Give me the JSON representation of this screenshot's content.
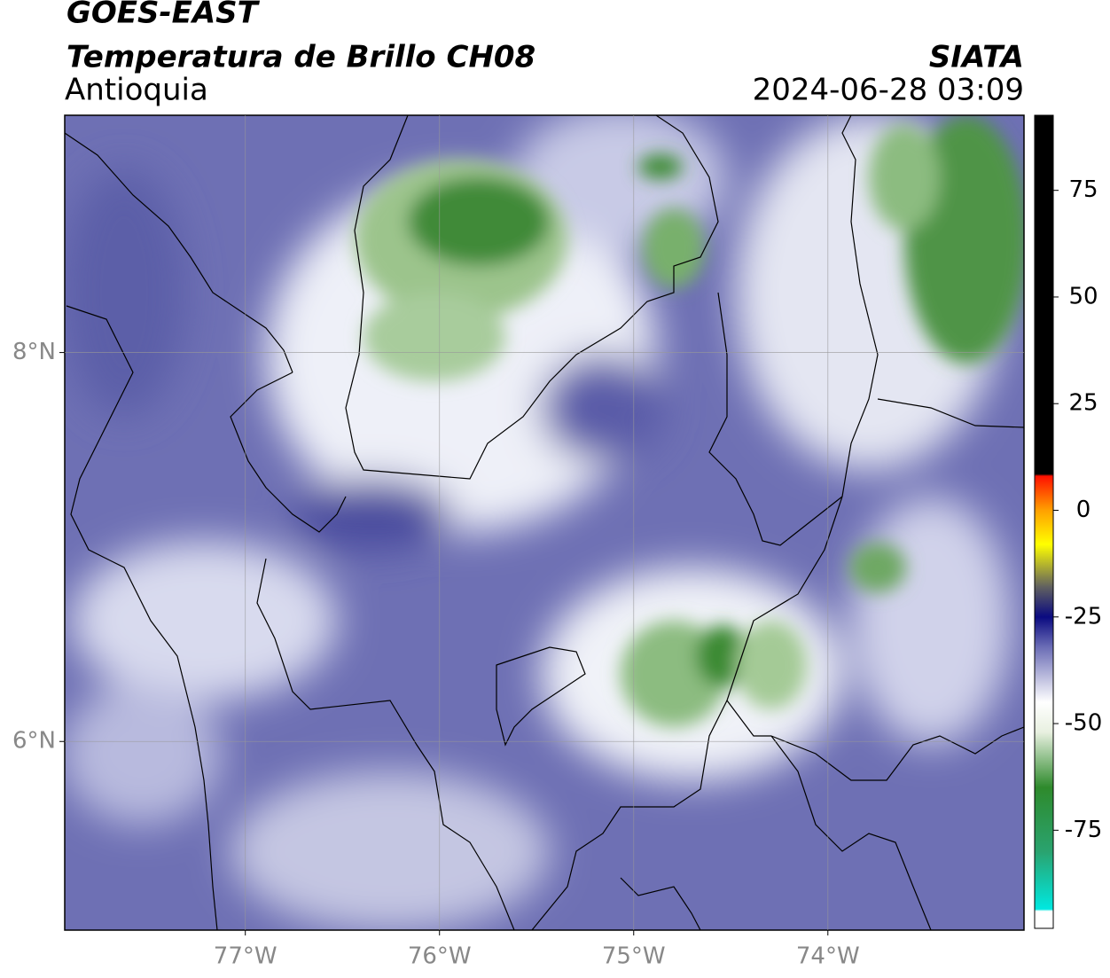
{
  "header": {
    "title": "GOES-EAST",
    "subtitle": "Temperatura de Brillo CH08",
    "region": "Antioquia",
    "source": "SIATA",
    "timestamp": "2024-06-28 03:09"
  },
  "map": {
    "xlim": [
      -77.93,
      -72.99
    ],
    "ylim": [
      5.03,
      9.22
    ],
    "xticks": [
      {
        "value": -77,
        "label": "77°W"
      },
      {
        "value": -76,
        "label": "76°W"
      },
      {
        "value": -75,
        "label": "75°W"
      },
      {
        "value": -74,
        "label": "74°W"
      }
    ],
    "yticks": [
      {
        "value": 6,
        "label": "6°N"
      },
      {
        "value": 8,
        "label": "8°N"
      }
    ],
    "grid": true
  },
  "colorbar": {
    "lim": [
      -98,
      92.6
    ],
    "ticks": [
      -75,
      -50,
      -25,
      0,
      25,
      50,
      75
    ],
    "colormap": [
      {
        "value": -98,
        "color": "#ffffff"
      },
      {
        "value": -94,
        "color": "#ffffff"
      },
      {
        "value": -93.5,
        "color": "#00e8e0"
      },
      {
        "value": -80,
        "color": "#2aa36f"
      },
      {
        "value": -65,
        "color": "#2e8a2c"
      },
      {
        "value": -52,
        "color": "#e8f0e0"
      },
      {
        "value": -45,
        "color": "#ffffff"
      },
      {
        "value": -32,
        "color": "#6a6cb5"
      },
      {
        "value": -25,
        "color": "#0a0a80"
      },
      {
        "value": -18,
        "color": "#606060"
      },
      {
        "value": -8,
        "color": "#ffff00"
      },
      {
        "value": 0,
        "color": "#ffa000"
      },
      {
        "value": 8,
        "color": "#ff1000"
      },
      {
        "value": 8.5,
        "color": "#000000"
      },
      {
        "value": 92.6,
        "color": "#000000"
      }
    ]
  }
}
